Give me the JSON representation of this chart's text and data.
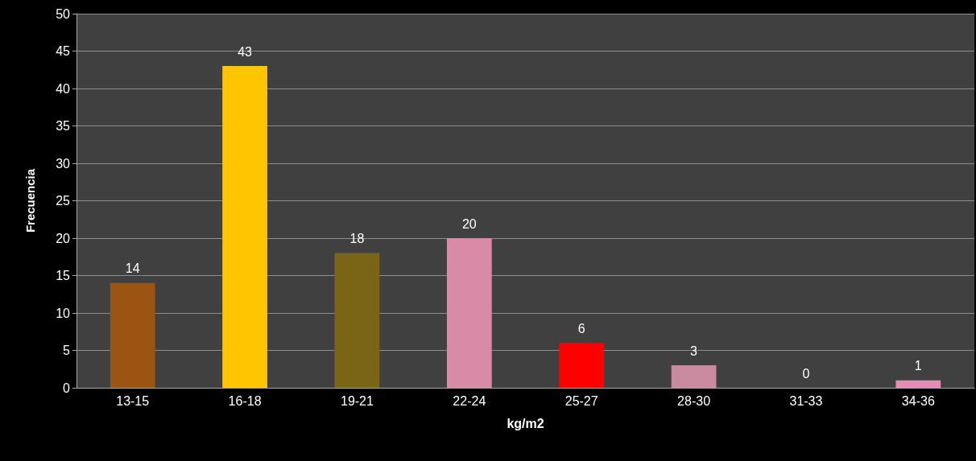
{
  "chart_data": {
    "type": "bar",
    "xlabel": "kg/m2",
    "ylabel": "Frecuencia",
    "categories": [
      "13-15",
      "16-18",
      "19-21",
      "22-24",
      "25-27",
      "28-30",
      "31-33",
      "34-36"
    ],
    "values": [
      14,
      43,
      18,
      20,
      6,
      3,
      0,
      1
    ],
    "colors": [
      "#9c5413",
      "#ffc600",
      "#7a6416",
      "#d98aa6",
      "#ff0000",
      "#c98aa0",
      "#d98aa6",
      "#e68ab8"
    ],
    "ylim": [
      0,
      50
    ],
    "yticks": [
      0,
      5,
      10,
      15,
      20,
      25,
      30,
      35,
      40,
      45,
      50
    ],
    "grid": "y",
    "data_labels": true
  }
}
